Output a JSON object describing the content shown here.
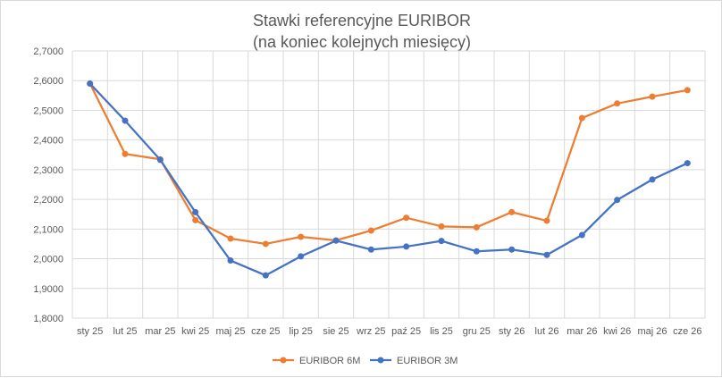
{
  "chart_data": {
    "type": "line",
    "title": "Stawki referencyjne EURIBOR",
    "subtitle": "(na koniec kolejnych miesięcy)",
    "xlabel": "",
    "ylabel": "",
    "categories": [
      "sty 25",
      "lut 25",
      "mar 25",
      "kwi 25",
      "maj 25",
      "cze 25",
      "lip 25",
      "sie 25",
      "wrz 25",
      "paź 25",
      "lis 25",
      "gru 25",
      "sty 26",
      "lut 26",
      "mar 26",
      "kwi 26",
      "maj 26",
      "cze 26"
    ],
    "ylim": [
      1.8,
      2.7
    ],
    "yticks": [
      "1,8000",
      "1,9000",
      "2,0000",
      "2,1000",
      "2,2000",
      "2,3000",
      "2,4000",
      "2,5000",
      "2,6000",
      "2,7000"
    ],
    "grid": true,
    "legend_position": "bottom",
    "series": [
      {
        "name": "EURIBOR 6M",
        "color": "#ED7D31",
        "values": [
          2.59,
          2.353,
          2.335,
          2.13,
          2.068,
          2.05,
          2.074,
          2.062,
          2.095,
          2.138,
          2.109,
          2.106,
          2.157,
          2.128,
          2.474,
          2.523,
          2.546,
          2.568
        ]
      },
      {
        "name": "EURIBOR 3M",
        "color": "#4472C4",
        "values": [
          2.59,
          2.465,
          2.333,
          2.157,
          1.994,
          1.944,
          2.008,
          2.061,
          2.031,
          2.041,
          2.06,
          2.025,
          2.031,
          2.013,
          2.08,
          2.198,
          2.267,
          2.322
        ]
      }
    ]
  }
}
